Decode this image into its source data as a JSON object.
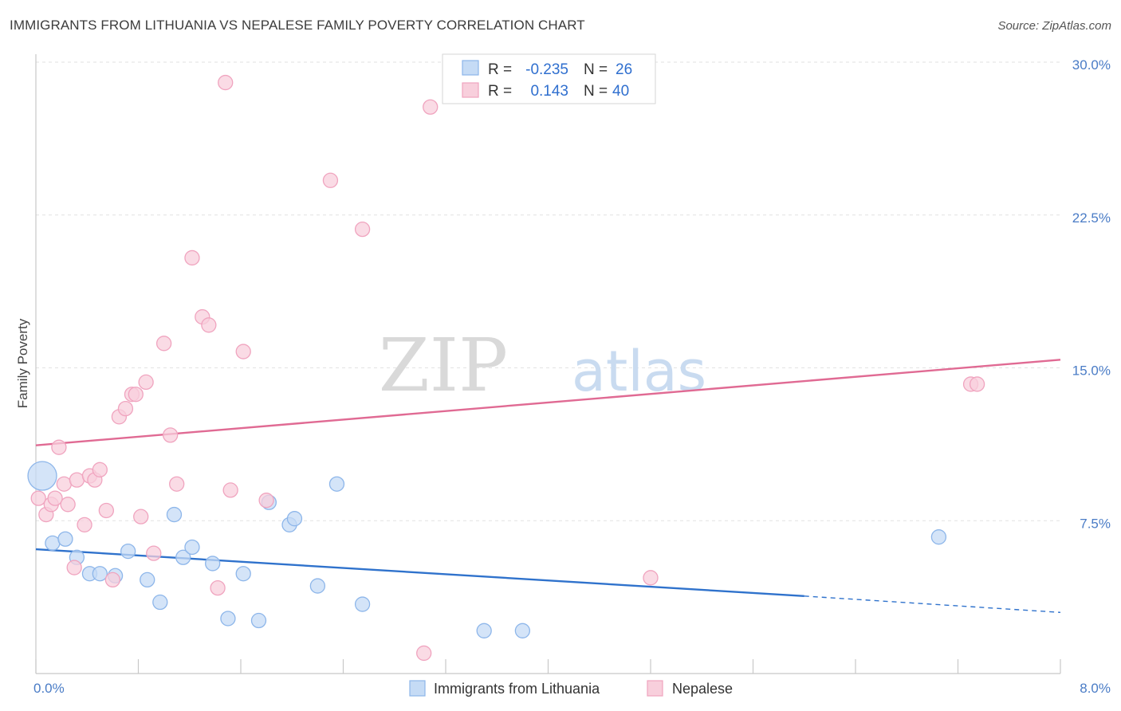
{
  "title": "IMMIGRANTS FROM LITHUANIA VS NEPALESE FAMILY POVERTY CORRELATION CHART",
  "source": "Source: ZipAtlas.com",
  "chart_data": {
    "type": "scatter",
    "ylabel": "Family Poverty",
    "xlim": [
      0,
      8.0
    ],
    "ylim": [
      0,
      30.0
    ],
    "x_tick_labels": [
      "0.0%",
      "8.0%"
    ],
    "y_ticks": [
      7.5,
      15.0,
      22.5,
      30.0
    ],
    "y_tick_labels": [
      "7.5%",
      "15.0%",
      "22.5%",
      "30.0%"
    ],
    "grid": true,
    "watermark": {
      "part1": "ZIP",
      "part2": "atlas"
    },
    "legend_top": {
      "rows": [
        {
          "r_label": "R =",
          "r_value": "-0.235",
          "n_label": "N =",
          "n_value": "26"
        },
        {
          "r_label": "R =",
          "r_value": "0.143",
          "n_label": "N =",
          "n_value": "40"
        }
      ]
    },
    "series": [
      {
        "name": "Immigrants from Lithuania",
        "color": "#8db6ea",
        "fill": "#c5dbf5",
        "line_color": "#2f72cc",
        "trend": {
          "x0": 0.0,
          "y0": 6.1,
          "x1": 6.0,
          "y1": 3.8,
          "dash_to_x": 8.0,
          "dash_to_y": 3.0
        },
        "points": [
          [
            0.05,
            9.7,
            18
          ],
          [
            0.13,
            6.4,
            9
          ],
          [
            0.23,
            6.6,
            9
          ],
          [
            0.32,
            5.7,
            9
          ],
          [
            0.42,
            4.9,
            9
          ],
          [
            0.5,
            4.9,
            9
          ],
          [
            0.62,
            4.8,
            9
          ],
          [
            0.72,
            6.0,
            9
          ],
          [
            0.87,
            4.6,
            9
          ],
          [
            0.97,
            3.5,
            9
          ],
          [
            1.08,
            7.8,
            9
          ],
          [
            1.15,
            5.7,
            9
          ],
          [
            1.22,
            6.2,
            9
          ],
          [
            1.38,
            5.4,
            9
          ],
          [
            1.5,
            2.7,
            9
          ],
          [
            1.62,
            4.9,
            9
          ],
          [
            1.74,
            2.6,
            9
          ],
          [
            1.82,
            8.4,
            9
          ],
          [
            1.98,
            7.3,
            9
          ],
          [
            2.02,
            7.6,
            9
          ],
          [
            2.2,
            4.3,
            9
          ],
          [
            2.35,
            9.3,
            9
          ],
          [
            2.55,
            3.4,
            9
          ],
          [
            3.5,
            2.1,
            9
          ],
          [
            3.8,
            2.1,
            9
          ],
          [
            7.05,
            6.7,
            9
          ]
        ]
      },
      {
        "name": "Nepalese",
        "color": "#f0a4bf",
        "fill": "#f8cfdc",
        "line_color": "#e06a93",
        "trend": {
          "x0": 0.0,
          "y0": 11.2,
          "x1": 8.0,
          "y1": 15.4
        },
        "points": [
          [
            0.02,
            8.6,
            9
          ],
          [
            0.08,
            7.8,
            9
          ],
          [
            0.12,
            8.3,
            9
          ],
          [
            0.15,
            8.6,
            9
          ],
          [
            0.18,
            11.1,
            9
          ],
          [
            0.22,
            9.3,
            9
          ],
          [
            0.25,
            8.3,
            9
          ],
          [
            0.3,
            5.2,
            9
          ],
          [
            0.32,
            9.5,
            9
          ],
          [
            0.38,
            7.3,
            9
          ],
          [
            0.42,
            9.7,
            9
          ],
          [
            0.46,
            9.5,
            9
          ],
          [
            0.5,
            10.0,
            9
          ],
          [
            0.55,
            8.0,
            9
          ],
          [
            0.6,
            4.6,
            9
          ],
          [
            0.65,
            12.6,
            9
          ],
          [
            0.7,
            13.0,
            9
          ],
          [
            0.75,
            13.7,
            9
          ],
          [
            0.78,
            13.7,
            9
          ],
          [
            0.82,
            7.7,
            9
          ],
          [
            0.86,
            14.3,
            9
          ],
          [
            0.92,
            5.9,
            9
          ],
          [
            1.0,
            16.2,
            9
          ],
          [
            1.05,
            11.7,
            9
          ],
          [
            1.1,
            9.3,
            9
          ],
          [
            1.22,
            20.4,
            9
          ],
          [
            1.3,
            17.5,
            9
          ],
          [
            1.35,
            17.1,
            9
          ],
          [
            1.42,
            4.2,
            9
          ],
          [
            1.48,
            29.0,
            9
          ],
          [
            1.52,
            9.0,
            9
          ],
          [
            1.62,
            15.8,
            9
          ],
          [
            1.8,
            8.5,
            9
          ],
          [
            2.3,
            24.2,
            9
          ],
          [
            2.55,
            21.8,
            9
          ],
          [
            3.03,
            1.0,
            9
          ],
          [
            3.08,
            27.8,
            9
          ],
          [
            4.8,
            4.7,
            9
          ],
          [
            7.3,
            14.2,
            9
          ],
          [
            7.35,
            14.2,
            9
          ]
        ]
      }
    ]
  }
}
